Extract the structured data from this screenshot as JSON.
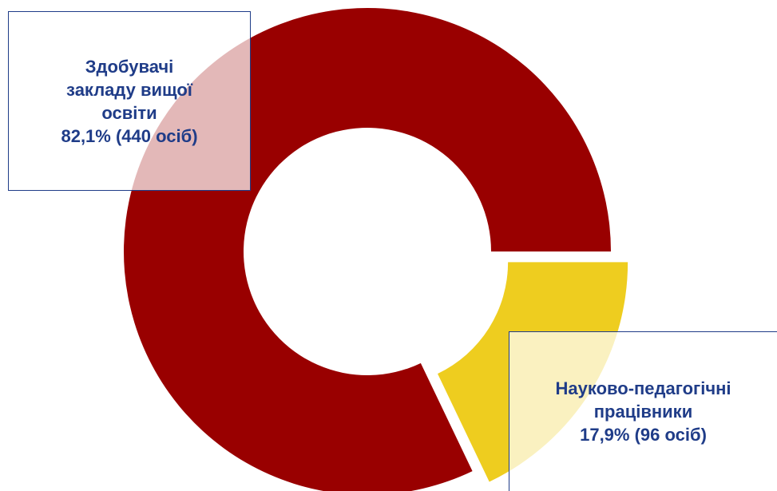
{
  "chart_data": {
    "type": "donut",
    "categories": [
      "Здобувачі закладу вищої освіти",
      "Науково-педагогічні працівники"
    ],
    "values": [
      82.1,
      17.9
    ],
    "value_labels": [
      "82,1% (440 осіб)",
      "17,9% (96 осіб)"
    ],
    "colors": [
      "#990000",
      "#eecd1f"
    ]
  }
}
